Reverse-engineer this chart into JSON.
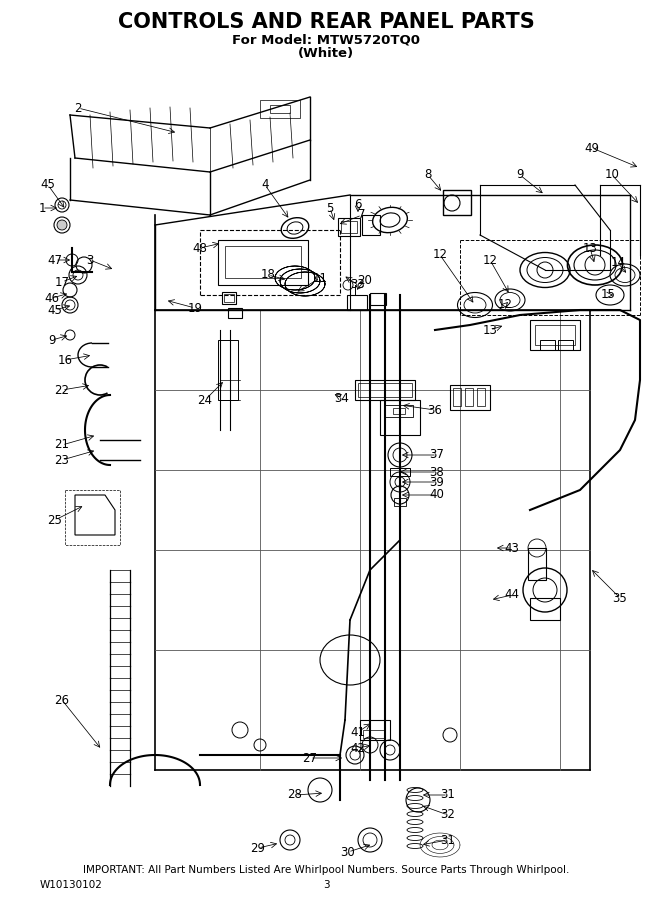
{
  "title": "CONTROLS AND REAR PANEL PARTS",
  "subtitle1": "For Model: MTW5720TQ0",
  "subtitle2": "(White)",
  "footer": "IMPORTANT: All Part Numbers Listed Are Whirlpool Numbers. Source Parts Through Whirlpool.",
  "doc_number": "W10130102",
  "page_number": "3",
  "bg_color": "#ffffff",
  "title_fontsize": 15,
  "subtitle_fontsize": 9.5,
  "footer_fontsize": 7.5,
  "label_fontsize": 8.5
}
